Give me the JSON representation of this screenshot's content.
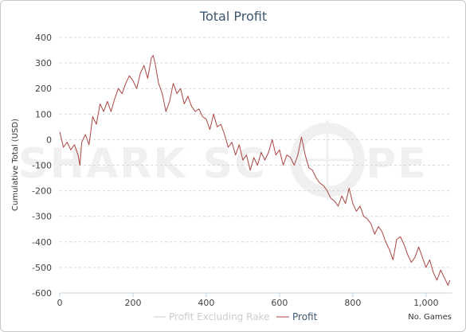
{
  "chart_data": {
    "type": "line",
    "title": "Total Profit",
    "xlabel": "No. Games",
    "ylabel": "Cumulative Total (USD)",
    "xlim": [
      0,
      1070
    ],
    "ylim": [
      -600,
      400
    ],
    "x_ticks": [
      0,
      200,
      400,
      600,
      800,
      1000
    ],
    "x_tick_labels": [
      "0",
      "200",
      "400",
      "600",
      "800",
      "1,000"
    ],
    "y_ticks": [
      400,
      300,
      200,
      100,
      0,
      -100,
      -200,
      -300,
      -400,
      -500,
      -600
    ],
    "y_tick_labels": [
      "400",
      "300",
      "200",
      "100",
      "0",
      "-100",
      "-200",
      "-300",
      "-400",
      "-500",
      "-600"
    ],
    "grid": "horizontal dashed",
    "legend_position": "bottom-center",
    "series": [
      {
        "name": "Profit Excluding Rake",
        "color": "#cccccc",
        "visible": false,
        "x": [],
        "y": []
      },
      {
        "name": "Profit",
        "color": "#aa4643",
        "visible": true,
        "x": [
          0,
          10,
          20,
          30,
          40,
          50,
          55,
          60,
          70,
          80,
          90,
          100,
          110,
          120,
          130,
          140,
          150,
          160,
          170,
          180,
          190,
          200,
          210,
          220,
          230,
          240,
          250,
          255,
          260,
          270,
          280,
          290,
          300,
          310,
          320,
          330,
          340,
          350,
          360,
          370,
          380,
          390,
          400,
          410,
          420,
          430,
          440,
          450,
          460,
          470,
          480,
          490,
          500,
          510,
          520,
          530,
          540,
          550,
          560,
          570,
          580,
          590,
          600,
          610,
          620,
          630,
          640,
          650,
          660,
          670,
          680,
          690,
          700,
          710,
          720,
          730,
          740,
          750,
          760,
          770,
          780,
          790,
          800,
          810,
          820,
          830,
          840,
          850,
          860,
          870,
          880,
          890,
          900,
          910,
          920,
          930,
          940,
          950,
          960,
          970,
          980,
          990,
          1000,
          1010,
          1020,
          1030,
          1040,
          1050,
          1060,
          1065
        ],
        "y": [
          30,
          -30,
          -10,
          -40,
          -20,
          -60,
          -100,
          -10,
          20,
          -20,
          90,
          60,
          140,
          110,
          150,
          110,
          160,
          200,
          180,
          220,
          250,
          230,
          200,
          260,
          290,
          240,
          320,
          330,
          300,
          220,
          180,
          110,
          150,
          220,
          180,
          200,
          140,
          170,
          130,
          110,
          120,
          90,
          80,
          40,
          100,
          50,
          60,
          20,
          -30,
          -10,
          -60,
          -20,
          -80,
          -60,
          -120,
          -70,
          -100,
          -50,
          -80,
          -50,
          0,
          -60,
          -40,
          -100,
          -60,
          -70,
          -100,
          -60,
          10,
          -60,
          -110,
          -120,
          -150,
          -170,
          -180,
          -200,
          -230,
          -240,
          -260,
          -220,
          -250,
          -190,
          -250,
          -280,
          -260,
          -300,
          -310,
          -330,
          -370,
          -340,
          -360,
          -400,
          -430,
          -470,
          -390,
          -380,
          -410,
          -450,
          -480,
          -460,
          -420,
          -460,
          -500,
          -470,
          -520,
          -550,
          -510,
          -540,
          -570,
          -550
        ]
      }
    ]
  },
  "watermark": {
    "text_left": "SHARK SC",
    "text_right": "PE"
  }
}
